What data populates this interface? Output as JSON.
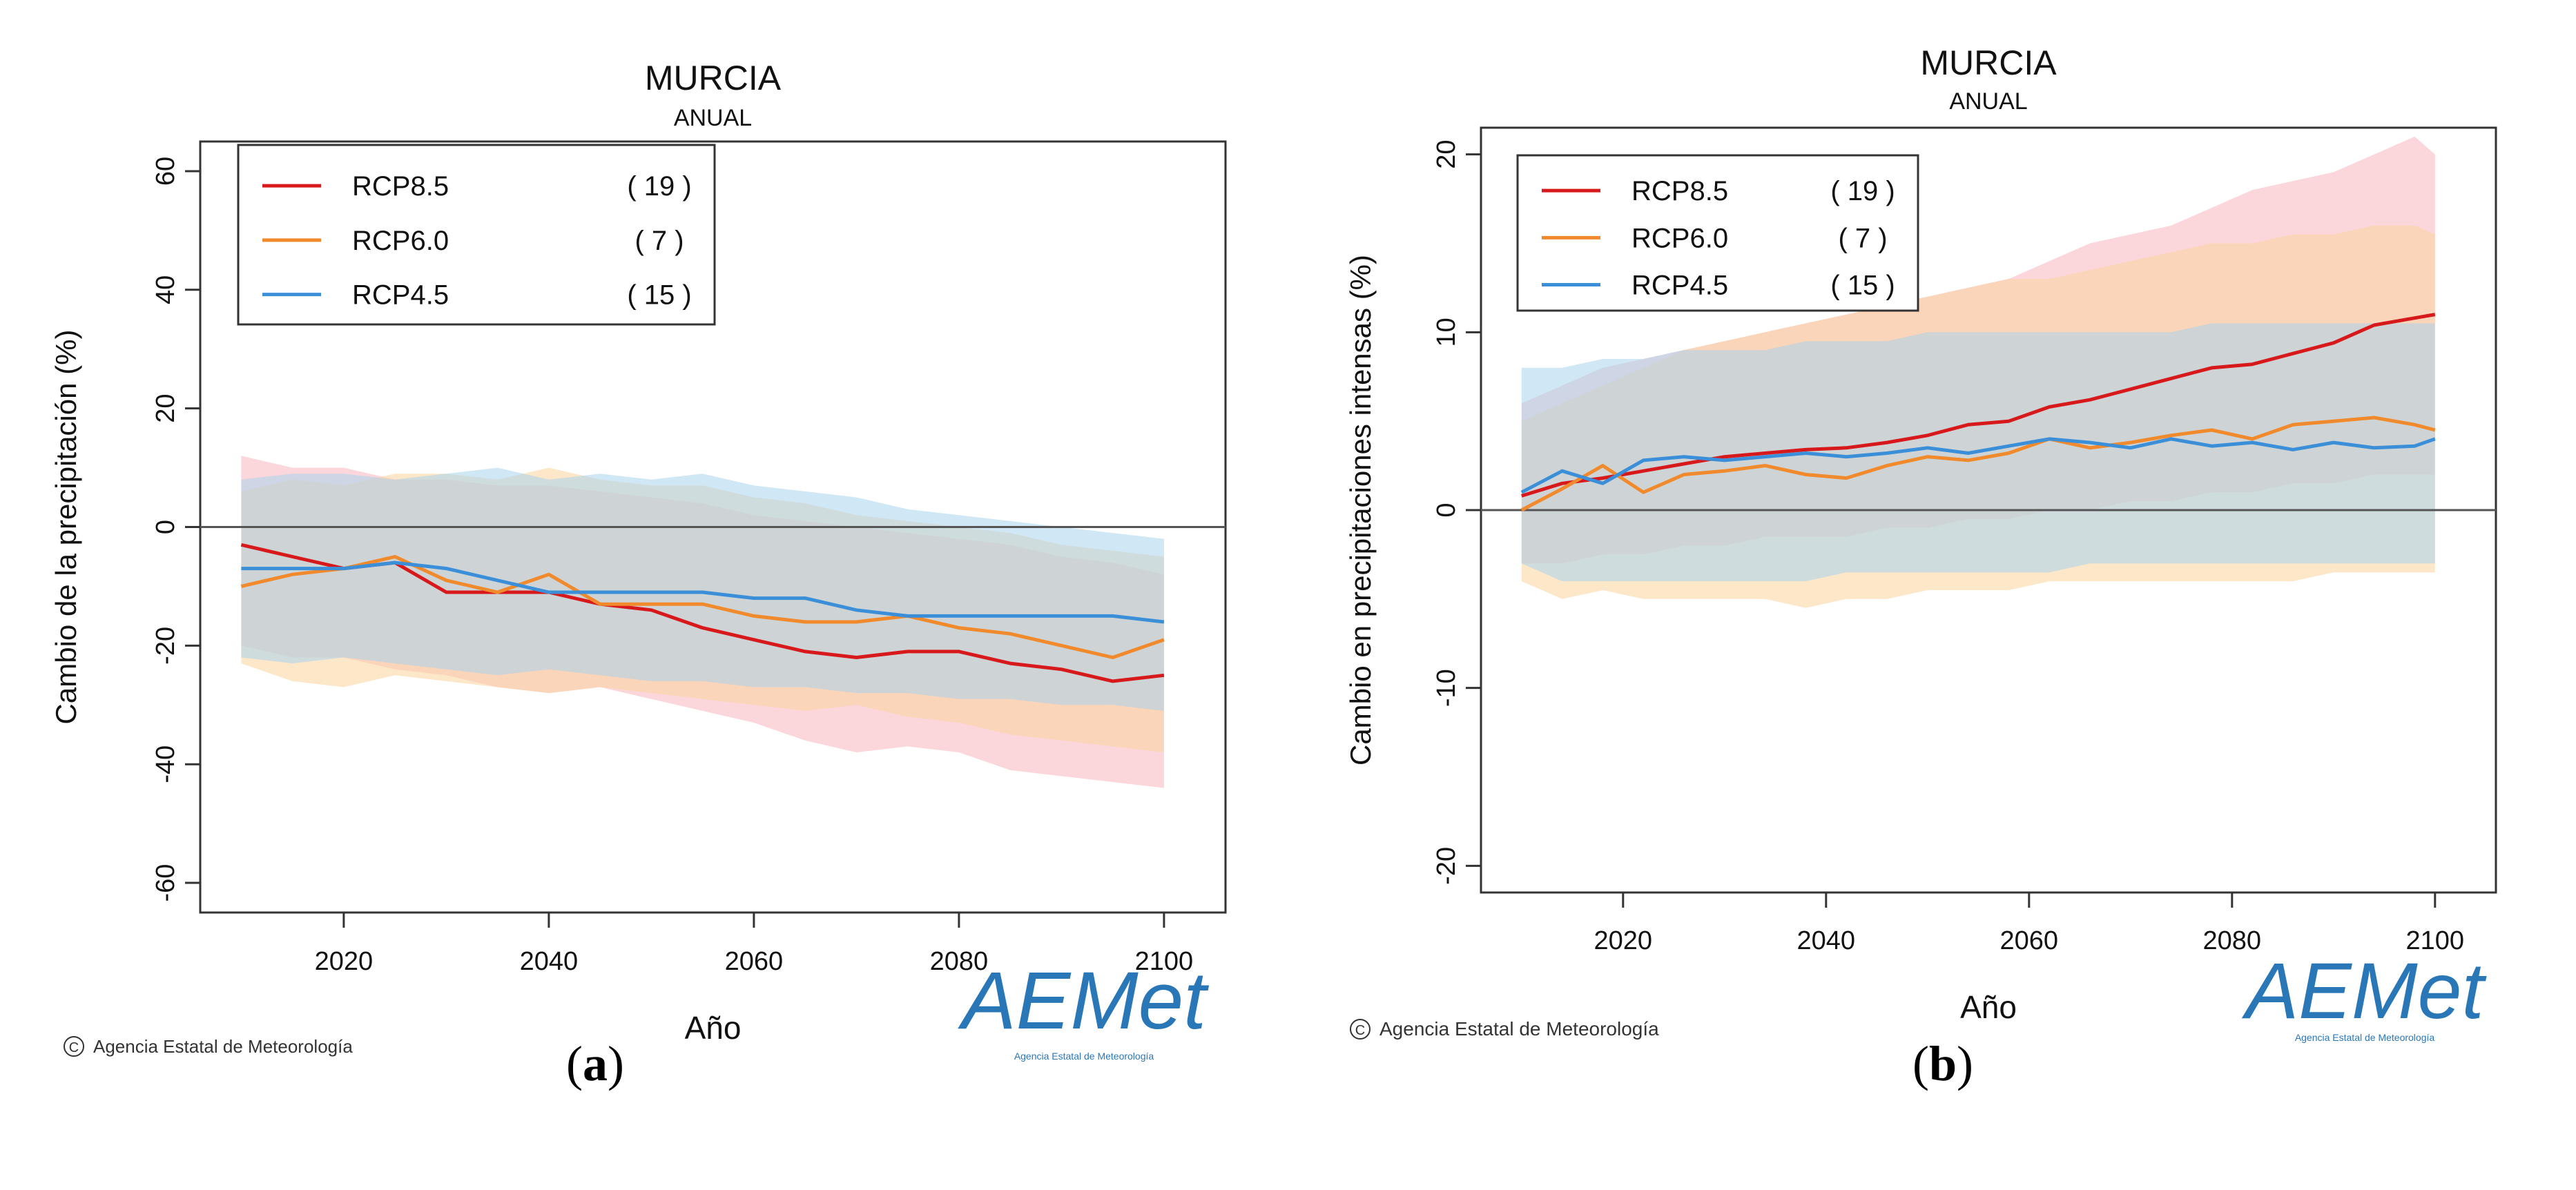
{
  "figure": {
    "panel_labels": [
      "a",
      "b"
    ],
    "credit": "Agencia Estatal de Meteorología",
    "logo_text": "AEMet",
    "logo_subtext": "Agencia Estatal de Meteorología",
    "copyright_symbol": "C"
  },
  "colors": {
    "rcp85": "#d7191c",
    "rcp60": "#f08a2c",
    "rcp45": "#3b8fd9",
    "band85": "#f7b6bd",
    "band60": "#fbd49c",
    "band45": "#a9d3ec",
    "overlap": "#c9cfc7",
    "logo": "#2a77b8",
    "logo_accent": "#f0a020"
  },
  "chart_data": [
    {
      "type": "line",
      "panel": "a",
      "title": "MURCIA",
      "subtitle": "ANUAL",
      "xlabel": "Año",
      "ylabel": "Cambio de la precipitación (%)",
      "xlim": [
        2006,
        2106
      ],
      "ylim": [
        -65,
        65
      ],
      "xticks": [
        2020,
        2040,
        2060,
        2080,
        2100
      ],
      "yticks": [
        -60,
        -40,
        -20,
        0,
        20,
        40,
        60
      ],
      "zero_line": 0,
      "legend": {
        "position": "top-left",
        "entries": [
          {
            "name": "RCP8.5",
            "count": "( 19 )"
          },
          {
            "name": "RCP6.0",
            "count": "(  7 )"
          },
          {
            "name": "RCP4.5",
            "count": "( 15 )"
          }
        ]
      },
      "x": [
        2010,
        2015,
        2020,
        2025,
        2030,
        2035,
        2040,
        2045,
        2050,
        2055,
        2060,
        2065,
        2070,
        2075,
        2080,
        2085,
        2090,
        2095,
        2100
      ],
      "series": [
        {
          "name": "RCP8.5",
          "key": "rcp85",
          "values": [
            -3,
            -5,
            -7,
            -6,
            -11,
            -11,
            -11,
            -13,
            -14,
            -17,
            -19,
            -21,
            -22,
            -21,
            -21,
            -23,
            -24,
            -26,
            -25
          ],
          "band_low": [
            -20,
            -22,
            -22,
            -24,
            -25,
            -27,
            -28,
            -27,
            -29,
            -31,
            -33,
            -36,
            -38,
            -37,
            -38,
            -41,
            -42,
            -43,
            -44
          ],
          "band_high": [
            12,
            10,
            10,
            8,
            8,
            7,
            7,
            6,
            5,
            4,
            2,
            1,
            0,
            -1,
            -2,
            -3,
            -5,
            -6,
            -8
          ]
        },
        {
          "name": "RCP6.0",
          "key": "rcp60",
          "values": [
            -10,
            -8,
            -7,
            -5,
            -9,
            -11,
            -8,
            -13,
            -13,
            -13,
            -15,
            -16,
            -16,
            -15,
            -17,
            -18,
            -20,
            -22,
            -19
          ],
          "band_low": [
            -23,
            -26,
            -27,
            -25,
            -26,
            -27,
            -28,
            -27,
            -28,
            -29,
            -30,
            -31,
            -30,
            -32,
            -33,
            -35,
            -36,
            -37,
            -38
          ],
          "band_high": [
            6,
            8,
            7,
            9,
            9,
            8,
            10,
            8,
            7,
            7,
            5,
            4,
            2,
            1,
            0,
            -1,
            -3,
            -4,
            -5
          ]
        },
        {
          "name": "RCP4.5",
          "key": "rcp45",
          "values": [
            -7,
            -7,
            -7,
            -6,
            -7,
            -9,
            -11,
            -11,
            -11,
            -11,
            -12,
            -12,
            -14,
            -15,
            -15,
            -15,
            -15,
            -15,
            -16
          ],
          "band_low": [
            -22,
            -23,
            -22,
            -23,
            -24,
            -25,
            -24,
            -25,
            -26,
            -26,
            -27,
            -27,
            -28,
            -28,
            -29,
            -29,
            -30,
            -30,
            -31
          ],
          "band_high": [
            8,
            9,
            9,
            8,
            9,
            10,
            8,
            9,
            8,
            9,
            7,
            6,
            5,
            3,
            2,
            1,
            0,
            -1,
            -2
          ]
        }
      ]
    },
    {
      "type": "line",
      "panel": "b",
      "title": "MURCIA",
      "subtitle": "ANUAL",
      "xlabel": "Año",
      "ylabel": "Cambio en precipitaciones intensas (%)",
      "xlim": [
        2006,
        2106
      ],
      "ylim": [
        -21.5,
        21.5
      ],
      "xticks": [
        2020,
        2040,
        2060,
        2080,
        2100
      ],
      "yticks": [
        -20,
        -10,
        0,
        10,
        20
      ],
      "zero_line": 0,
      "legend": {
        "position": "top-left",
        "entries": [
          {
            "name": "RCP8.5",
            "count": "( 19 )"
          },
          {
            "name": "RCP6.0",
            "count": "(  7 )"
          },
          {
            "name": "RCP4.5",
            "count": "( 15 )"
          }
        ]
      },
      "x": [
        2010,
        2014,
        2018,
        2022,
        2026,
        2030,
        2034,
        2038,
        2042,
        2046,
        2050,
        2054,
        2058,
        2062,
        2066,
        2070,
        2074,
        2078,
        2082,
        2086,
        2090,
        2094,
        2098,
        2100
      ],
      "series": [
        {
          "name": "RCP8.5",
          "key": "rcp85",
          "values": [
            0.8,
            1.5,
            1.8,
            2.2,
            2.6,
            3.0,
            3.2,
            3.4,
            3.5,
            3.8,
            4.2,
            4.8,
            5.0,
            5.8,
            6.2,
            6.8,
            7.4,
            8.0,
            8.2,
            8.8,
            9.4,
            10.4,
            10.8,
            11.0
          ],
          "band_low": [
            -3,
            -3,
            -2.5,
            -2.5,
            -2,
            -2,
            -1.5,
            -1.5,
            -1.5,
            -1,
            -1,
            -0.5,
            -0.5,
            0,
            0,
            0.5,
            0.5,
            1,
            1,
            1.5,
            1.5,
            2,
            2,
            2
          ],
          "band_high": [
            6,
            7,
            8,
            8.5,
            9,
            9.5,
            10,
            10.5,
            11,
            11.5,
            12,
            12.5,
            13,
            14,
            15,
            15.5,
            16,
            17,
            18,
            18.5,
            19,
            20,
            21,
            20
          ]
        },
        {
          "name": "RCP6.0",
          "key": "rcp60",
          "values": [
            0.0,
            1.2,
            2.5,
            1.0,
            2.0,
            2.2,
            2.5,
            2.0,
            1.8,
            2.5,
            3.0,
            2.8,
            3.2,
            4.0,
            3.5,
            3.8,
            4.2,
            4.5,
            4.0,
            4.8,
            5.0,
            5.2,
            4.8,
            4.5
          ],
          "band_low": [
            -4,
            -5,
            -4.5,
            -5,
            -5,
            -5,
            -5,
            -5.5,
            -5,
            -5,
            -4.5,
            -4.5,
            -4.5,
            -4,
            -4,
            -4,
            -4,
            -4,
            -4,
            -4,
            -3.5,
            -3.5,
            -3.5,
            -3.5
          ],
          "band_high": [
            5,
            6,
            7,
            8,
            9,
            9.5,
            10,
            10.5,
            11,
            11.5,
            12,
            12.5,
            13,
            13,
            13.5,
            14,
            14.5,
            15,
            15,
            15.5,
            15.5,
            16,
            16,
            15.5
          ]
        },
        {
          "name": "RCP4.5",
          "key": "rcp45",
          "values": [
            1.0,
            2.2,
            1.5,
            2.8,
            3.0,
            2.8,
            3.0,
            3.2,
            3.0,
            3.2,
            3.5,
            3.2,
            3.6,
            4.0,
            3.8,
            3.5,
            4.0,
            3.6,
            3.8,
            3.4,
            3.8,
            3.5,
            3.6,
            4.0
          ],
          "band_low": [
            -3,
            -4,
            -4,
            -4,
            -4,
            -4,
            -4,
            -4,
            -3.5,
            -3.5,
            -3.5,
            -3.5,
            -3.5,
            -3.5,
            -3,
            -3,
            -3,
            -3,
            -3,
            -3,
            -3,
            -3,
            -3,
            -3
          ],
          "band_high": [
            8,
            8,
            8.5,
            8.5,
            9,
            9,
            9,
            9.5,
            9.5,
            9.5,
            10,
            10,
            10,
            10,
            10,
            10,
            10,
            10.5,
            10.5,
            10.5,
            10.5,
            10.5,
            10.5,
            10.5
          ]
        }
      ]
    }
  ]
}
